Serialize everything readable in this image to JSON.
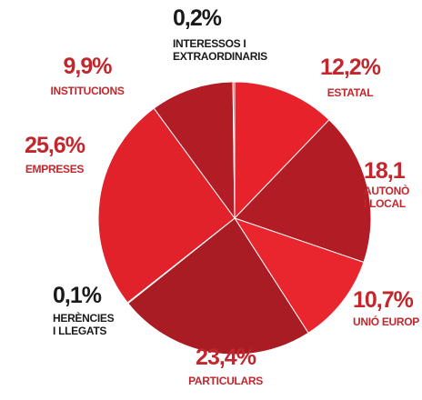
{
  "chart_data": {
    "type": "pie",
    "categories": [
      [
        "ESTATAL"
      ],
      [
        "AUTONÒ",
        "I LOCAL"
      ],
      [
        "UNIÓ EUROP"
      ],
      [
        "PARTICULARS"
      ],
      [
        "HERÈNCIES",
        "I LLEGATS"
      ],
      [
        "EMPRESES"
      ],
      [
        "INSTITUCIONS"
      ],
      [
        "INTERESSOS I",
        "EXTRAORDINARIS"
      ]
    ],
    "values": [
      12.2,
      18.1,
      10.7,
      23.4,
      0.1,
      25.6,
      9.9,
      0.2
    ],
    "value_labels": [
      "12,2%",
      "18,1",
      "10,7%",
      "23,4%",
      "0,1%",
      "25,6%",
      "9,9%",
      "0,2%"
    ],
    "colors": [
      "#e8222b",
      "#b21d25",
      "#e9252d",
      "#a91c23",
      "#b21d25",
      "#e2222a",
      "#b21d25",
      "#e8222b"
    ],
    "label_colors": [
      "#c1272d",
      "#c1272d",
      "#c1272d",
      "#c1272d",
      "#1a1a1a",
      "#c1272d",
      "#c1272d",
      "#1a1a1a"
    ]
  }
}
